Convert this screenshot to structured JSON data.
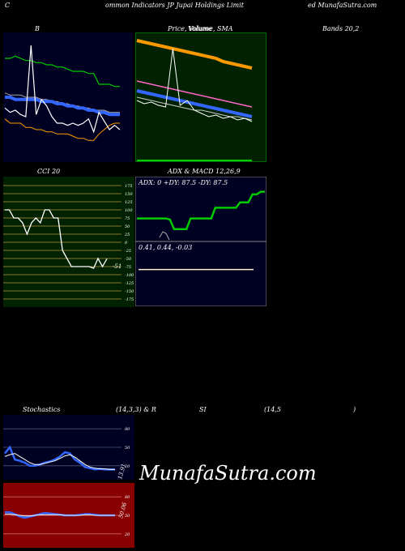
{
  "title": {
    "c": "C",
    "main": "ommon  Indicators JP Jupai  Holdings Limit",
    "right": "ed MunafaSutra.com"
  },
  "watermark": "MunafaSutra.com",
  "labels": {
    "bands_b": "B",
    "price_sma": "Price,  Volume, SMA",
    "volume_overlap": "Volume",
    "bands_right": "Bands 20,2",
    "cci": "CCI 20",
    "adx_macd": "ADX  & MACD 12,26,9",
    "stoch": "Stochastics",
    "stoch_params": "(14,3,3) & R",
    "rsi": "SI",
    "rsi_params": "(14,5",
    "rsi_close": ")"
  },
  "adx_text": "ADX: 0   +DY: 87.5 -DY: 87.5",
  "macd_text": "0.41,  0.44,  -0.03",
  "cci_current": "-51",
  "stoch_current": "13.91",
  "rsi_current": "50.06",
  "colors": {
    "bands_bg": "#000022",
    "price_bg": "#002200",
    "cci_bg": "#002200",
    "rsi_bg": "#880000",
    "blue_line": "#3366ff",
    "green_line": "#00cc00",
    "orange_line": "#ff9900",
    "pink_line": "#ff66cc"
  },
  "chart_data": [
    {
      "type": "line",
      "name": "bollinger-bands",
      "series": [
        {
          "values": [
            88,
            88,
            89,
            88,
            87,
            87,
            86,
            86,
            85,
            85,
            84,
            84,
            83,
            82,
            82,
            82,
            81,
            81,
            76,
            76,
            76,
            75,
            75
          ]
        },
        {
          "values": [
            72,
            71,
            71,
            71,
            70,
            70,
            70,
            69,
            69,
            68,
            68,
            67,
            67,
            66,
            66,
            65,
            65,
            64,
            64,
            64,
            63,
            63,
            63
          ]
        },
        {
          "values": [
            70,
            70,
            69,
            69,
            69,
            69,
            69,
            68,
            68,
            68,
            67,
            67,
            66,
            66,
            65,
            65,
            64,
            64,
            63,
            63,
            62,
            62,
            62
          ]
        },
        {
          "values": [
            60,
            58,
            58,
            58,
            56,
            56,
            55,
            55,
            54,
            54,
            53,
            53,
            53,
            52,
            51,
            51,
            50,
            50,
            53,
            55,
            57,
            58,
            58
          ]
        },
        {
          "values": [
            65,
            63,
            64,
            62,
            61,
            94,
            62,
            69,
            66,
            61,
            58,
            58,
            57,
            58,
            57,
            58,
            60,
            54,
            63,
            59,
            55,
            57,
            55
          ]
        }
      ]
    },
    {
      "type": "line",
      "name": "price-sma",
      "series": [
        {
          "values": [
            95,
            94,
            93,
            92,
            91,
            90,
            89,
            88,
            87,
            86,
            85,
            84,
            82,
            81,
            80,
            79,
            78
          ]
        },
        {
          "values": [
            70,
            69,
            68,
            67,
            66,
            65,
            64,
            63,
            62,
            61,
            60,
            59,
            58,
            57,
            56,
            55,
            54
          ]
        },
        {
          "values": [
            64,
            63,
            62,
            61,
            60,
            59,
            58,
            57,
            56,
            55,
            54,
            53,
            52,
            51,
            50,
            49,
            48
          ]
        },
        {
          "values": [
            60,
            59,
            58,
            57,
            56,
            55,
            54,
            53,
            52,
            52,
            51,
            50,
            49,
            48,
            48,
            47,
            46
          ]
        },
        {
          "values": [
            58,
            56,
            57,
            55,
            54,
            90,
            55,
            58,
            52,
            50,
            48,
            49,
            47,
            48,
            46,
            47,
            45
          ]
        }
      ]
    },
    {
      "type": "line",
      "name": "cci",
      "yticks": [
        175,
        150,
        125,
        100,
        75,
        50,
        25,
        0,
        -25,
        -50,
        -75,
        -100,
        -125,
        -150,
        -175
      ],
      "ylim": [
        -175,
        175
      ],
      "values": [
        100,
        100,
        75,
        75,
        60,
        25,
        60,
        75,
        60,
        100,
        100,
        75,
        75,
        -25,
        -50,
        -75,
        -75,
        -75,
        -75,
        -75,
        -80,
        -50,
        -75,
        -51
      ]
    },
    {
      "type": "line",
      "name": "adx",
      "values": [
        40,
        40,
        40,
        40,
        40,
        40,
        40,
        40,
        38,
        20,
        20,
        20,
        20,
        40,
        40,
        40,
        40,
        40,
        40,
        60,
        60,
        60,
        60,
        60,
        60,
        70,
        70,
        70,
        85,
        85,
        90,
        90
      ]
    },
    {
      "type": "line",
      "name": "macd",
      "values": [
        0.41,
        0.41,
        0.41,
        0.41,
        0.41,
        0.41,
        0.41,
        0.41,
        0.41,
        0.41,
        0.41,
        0.41,
        0.41,
        0.41
      ]
    },
    {
      "type": "line",
      "name": "stochastics",
      "yticks": [
        80,
        50,
        20
      ],
      "series": [
        {
          "values": [
            40,
            50,
            30,
            28,
            25,
            20,
            20,
            22,
            25,
            27,
            30,
            35,
            42,
            40,
            30,
            25,
            18,
            16,
            14,
            15,
            14,
            14,
            13.91
          ]
        },
        {
          "values": [
            35,
            38,
            40,
            35,
            30,
            25,
            22,
            22,
            24,
            26,
            28,
            32,
            36,
            38,
            34,
            28,
            22,
            18,
            16,
            15,
            15,
            14,
            14
          ]
        }
      ]
    },
    {
      "type": "line",
      "name": "rsi",
      "yticks": [
        80,
        50,
        20
      ],
      "series": [
        {
          "values": [
            55,
            55,
            52,
            48,
            46,
            48,
            50,
            52,
            54,
            53,
            52,
            51,
            50,
            50,
            50,
            51,
            52,
            52,
            51,
            50,
            50,
            50,
            50.06
          ]
        },
        {
          "values": [
            52,
            52,
            51,
            50,
            49,
            49,
            50,
            51,
            51,
            51,
            51,
            51,
            50,
            50,
            50,
            50,
            51,
            51,
            50,
            50,
            50,
            50,
            50
          ]
        }
      ]
    }
  ]
}
